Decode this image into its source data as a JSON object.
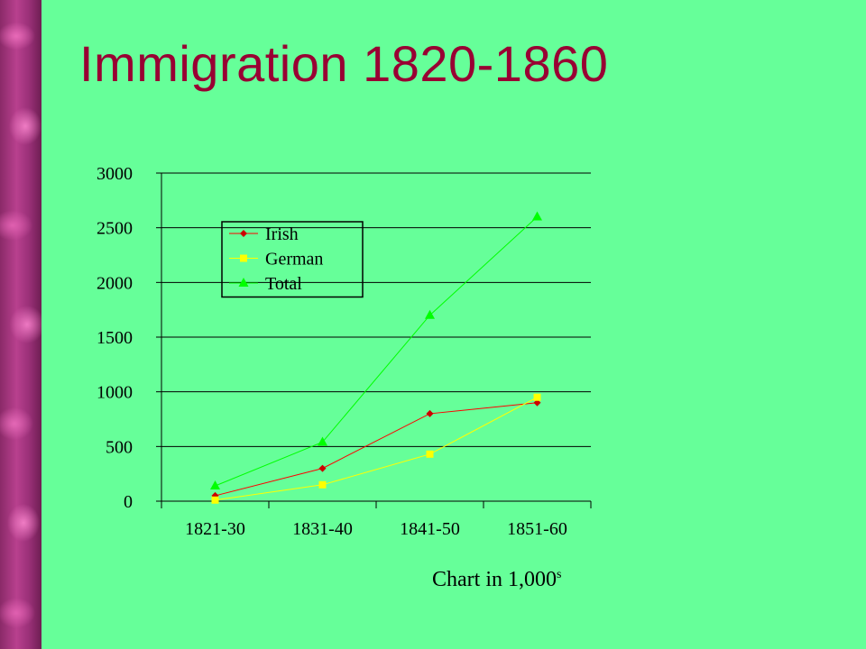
{
  "slide": {
    "title": "Immigration 1820-1860",
    "footnote": {
      "text": "Chart in 1,000",
      "superscript": "s"
    }
  },
  "chart_data": {
    "type": "line",
    "title": "",
    "xlabel": "",
    "ylabel": "",
    "categories": [
      "1821-30",
      "1831-40",
      "1841-50",
      "1851-60"
    ],
    "ylim": [
      0,
      3000
    ],
    "yticks": [
      0,
      500,
      1000,
      1500,
      2000,
      2500,
      3000
    ],
    "grid": true,
    "legend_position": "top-left",
    "series": [
      {
        "name": "Irish",
        "values": [
          50,
          300,
          800,
          900
        ],
        "color": "#ff0000",
        "marker_color": "#cc0000",
        "marker": "diamond"
      },
      {
        "name": "German",
        "values": [
          10,
          150,
          430,
          950
        ],
        "color": "#ffff00",
        "marker_color": "#ffff00",
        "marker": "square"
      },
      {
        "name": "Total",
        "values": [
          140,
          540,
          1700,
          2600
        ],
        "color": "#00ff00",
        "marker_color": "#00ff00",
        "marker": "triangle"
      }
    ]
  }
}
